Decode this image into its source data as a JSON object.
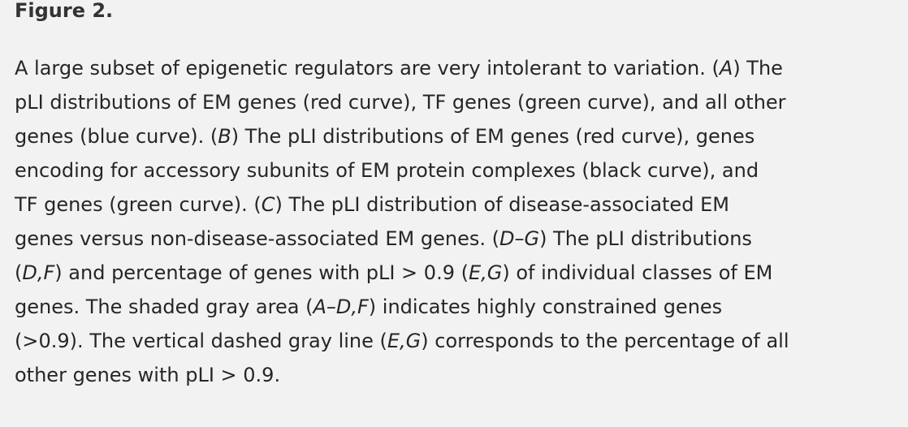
{
  "figure": {
    "heading": "Figure 2."
  },
  "caption": {
    "lines": [
      [
        {
          "t": "A large subset of epigenetic regulators are very intolerant to variation. ("
        },
        {
          "t": "A",
          "i": true
        },
        {
          "t": ") The"
        }
      ],
      [
        {
          "t": "pLI distributions of EM genes (red curve), TF genes (green curve), and all other"
        }
      ],
      [
        {
          "t": "genes (blue curve). ("
        },
        {
          "t": "B",
          "i": true
        },
        {
          "t": ") The pLI distributions of EM genes (red curve), genes"
        }
      ],
      [
        {
          "t": "encoding for accessory subunits of EM protein complexes (black curve), and"
        }
      ],
      [
        {
          "t": "TF genes (green curve). ("
        },
        {
          "t": "C",
          "i": true
        },
        {
          "t": ") The pLI distribution of disease-associated EM"
        }
      ],
      [
        {
          "t": "genes versus non-disease-associated EM genes. ("
        },
        {
          "t": "D–G",
          "i": true
        },
        {
          "t": ") The pLI distributions"
        }
      ],
      [
        {
          "t": "("
        },
        {
          "t": "D,F",
          "i": true
        },
        {
          "t": ") and percentage of genes with pLI > 0.9 ("
        },
        {
          "t": "E,G",
          "i": true
        },
        {
          "t": ") of individual classes of EM"
        }
      ],
      [
        {
          "t": "genes. The shaded gray area ("
        },
        {
          "t": "A–D,F",
          "i": true
        },
        {
          "t": ") indicates highly constrained genes"
        }
      ],
      [
        {
          "t": "(>0.9). The vertical dashed gray line ("
        },
        {
          "t": "E,G",
          "i": true
        },
        {
          "t": ") corresponds to the percentage of all"
        }
      ],
      [
        {
          "t": "other genes with pLI > 0.9."
        }
      ]
    ]
  }
}
